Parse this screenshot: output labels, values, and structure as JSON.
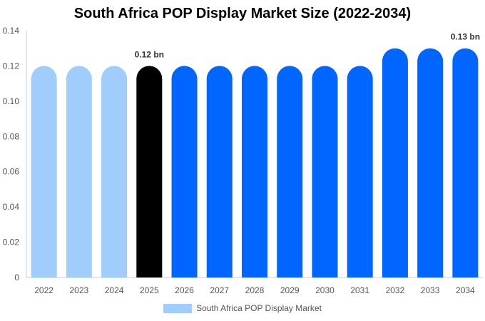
{
  "chart_data": {
    "type": "bar",
    "title": "South Africa POP Display Market Size (2022-2034)",
    "xlabel": "",
    "ylabel": "",
    "ylim": [
      0,
      0.14
    ],
    "yticks": [
      "0",
      "0.02",
      "0.04",
      "0.06",
      "0.08",
      "0.10",
      "0.12",
      "0.14"
    ],
    "categories": [
      "2022",
      "2023",
      "2024",
      "2025",
      "2026",
      "2027",
      "2028",
      "2029",
      "2030",
      "2031",
      "2032",
      "2033",
      "2034"
    ],
    "series": [
      {
        "name": "South Africa POP Display Market",
        "values": [
          0.12,
          0.12,
          0.12,
          0.12,
          0.12,
          0.12,
          0.12,
          0.12,
          0.12,
          0.12,
          0.13,
          0.13,
          0.13
        ]
      }
    ],
    "bar_colors": [
      "#a1cdfc",
      "#a1cdfc",
      "#a1cdfc",
      "#000000",
      "#0066ff",
      "#0066ff",
      "#0066ff",
      "#0066ff",
      "#0066ff",
      "#0066ff",
      "#0066ff",
      "#0066ff",
      "#0066ff"
    ],
    "annotations": [
      {
        "category": "2025",
        "text": "0.12 bn"
      },
      {
        "category": "2034",
        "text": "0.13 bn"
      }
    ],
    "legend_color": "#a1cdfc",
    "legend_position": "bottom"
  }
}
